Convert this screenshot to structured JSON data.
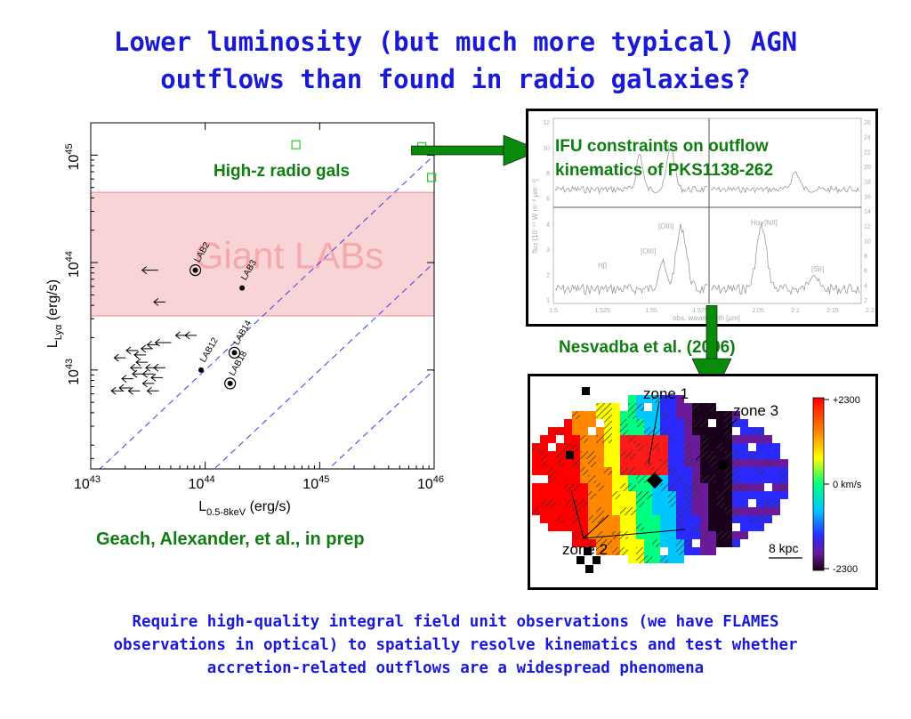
{
  "title": {
    "line1": "Lower luminosity (but much more typical) AGN",
    "line2": "outflows than found in radio galaxies?"
  },
  "footer": {
    "line1": "Require high-quality integral field unit observations (we have FLAMES",
    "line2": "observations in optical) to spatially resolve kinematics and test whether",
    "line3": "accretion-related outflows are a widespread phenomena"
  },
  "annotations": {
    "radio_gals": "High-z radio gals",
    "geach": "Geach, Alexander, et al., in prep",
    "ifu_line1": "IFU constraints on outflow",
    "ifu_line2": "kinematics of PKS1138-262",
    "nesvadba": "Nesvadba et al. (2006)"
  },
  "colors": {
    "title": "#1a1ad4",
    "annotation": "#0f7d10",
    "arrow": "#0a8a0a",
    "lab_band": "#f9d4d6"
  },
  "chart_data": [
    {
      "type": "scatter",
      "xlabel": "L0.5-8keV (erg/s)",
      "ylabel": "LLyα (erg/s)",
      "x_scale": "log",
      "y_scale": "log",
      "xlim": [
        1e+43,
        1e+46
      ],
      "ylim": [
        1.2e+42,
        2e+45
      ],
      "x_ticks": [
        {
          "v": 1e+43,
          "base": "10",
          "exp": "43"
        },
        {
          "v": 1e+44,
          "base": "10",
          "exp": "44"
        },
        {
          "v": 1e+45,
          "base": "10",
          "exp": "45"
        },
        {
          "v": 1e+46,
          "base": "10",
          "exp": "46"
        }
      ],
      "y_ticks": [
        {
          "v": 1e+43,
          "base": "10",
          "exp": "43"
        },
        {
          "v": 1e+44,
          "base": "10",
          "exp": "44"
        },
        {
          "v": 1e+45,
          "base": "10",
          "exp": "45"
        }
      ],
      "band": {
        "label": "Giant LABs",
        "y_range": [
          3.2e+43,
          4.5e+44
        ]
      },
      "points": [
        {
          "label": "LAB2",
          "x": 8.2e+43,
          "y": 8.5e+43,
          "circled": true
        },
        {
          "label": "LAB3",
          "x": 2.1e+44,
          "y": 5.8e+43,
          "circled": false
        },
        {
          "label": "LAB12",
          "x": 9.2e+43,
          "y": 1e+43,
          "circled": false
        },
        {
          "label": "LAB14",
          "x": 1.8e+44,
          "y": 1.45e+43,
          "circled": true
        },
        {
          "label": "LAB18",
          "x": 1.65e+44,
          "y": 7.5e+42,
          "circled": true
        }
      ],
      "radio_galaxies": [
        {
          "x": 6.2e+44,
          "y": 1.25e+45
        },
        {
          "x": 7.8e+45,
          "y": 1.2e+45
        },
        {
          "x": 9.5e+45,
          "y": 6.2e+44
        }
      ],
      "upper_limits": [
        {
          "x": 3.3e+43,
          "y": 8.5e+43
        },
        {
          "x": 4e+43,
          "y": 4.3e+43
        },
        {
          "x": 4.3e+43,
          "y": 1.8e+43
        },
        {
          "x": 6.2e+43,
          "y": 2.1e+43
        },
        {
          "x": 7.5e+43,
          "y": 2.1e+43
        },
        {
          "x": 3.5e+43,
          "y": 1.72e+43
        },
        {
          "x": 3.1e+43,
          "y": 1.58e+43
        },
        {
          "x": 2.3e+43,
          "y": 1.52e+43
        },
        {
          "x": 2.7e+43,
          "y": 1.38e+43
        },
        {
          "x": 1.8e+43,
          "y": 1.3e+43
        },
        {
          "x": 2.8e+43,
          "y": 1.18e+43
        },
        {
          "x": 2.5e+43,
          "y": 1.05e+43
        },
        {
          "x": 3.4e+43,
          "y": 1.05e+43
        },
        {
          "x": 4e+43,
          "y": 1.05e+43
        },
        {
          "x": 2.6e+43,
          "y": 9.2e+42
        },
        {
          "x": 3.2e+43,
          "y": 9.2e+42
        },
        {
          "x": 3.8e+43,
          "y": 8.5e+42
        },
        {
          "x": 2.1e+43,
          "y": 8.3e+42
        },
        {
          "x": 3.2e+43,
          "y": 7.5e+42
        },
        {
          "x": 2e+43,
          "y": 6.8e+42
        },
        {
          "x": 1.7e+43,
          "y": 6.4e+42
        },
        {
          "x": 2.4e+43,
          "y": 6.4e+42
        },
        {
          "x": 3.5e+43,
          "y": 6.4e+42
        }
      ],
      "ratio_lines": [
        0.1,
        0.01,
        0.001
      ]
    },
    {
      "type": "line",
      "xlabel": "obs. wavelength [μm]",
      "ylabel": "flux [10⁻¹⁷ W m⁻² μm⁻¹]",
      "x_ticks_left": [
        "1.5",
        "1.525",
        "1.55",
        "1.575"
      ],
      "x_ticks_right": [
        "2.05",
        "2.1",
        "2.15",
        "2.2"
      ],
      "y_ticks_left": [
        "12",
        "10",
        "8",
        "6",
        "4",
        "3",
        "2",
        "1"
      ],
      "y_ticks_right": [
        "26",
        "24",
        "22",
        "20",
        "18",
        "16",
        "14",
        "12",
        "10",
        "8",
        "6",
        "4",
        "2"
      ],
      "line_labels_top": [
        "Hβ",
        "[OIII]"
      ],
      "line_labels_bottom": [
        "Hβ",
        "[OIII]",
        "[OIII]",
        "Hα+[NII]",
        "[SII]"
      ]
    },
    {
      "type": "heatmap",
      "colorbar": {
        "max_label": "+2300",
        "mid_label": "0 km/s",
        "min_label": "-2300",
        "range": [
          -2300,
          2300
        ],
        "unit": "km/s"
      },
      "zones": [
        "zone 1",
        "zone 2",
        "zone 3"
      ],
      "scale_label": "8 kpc"
    }
  ]
}
